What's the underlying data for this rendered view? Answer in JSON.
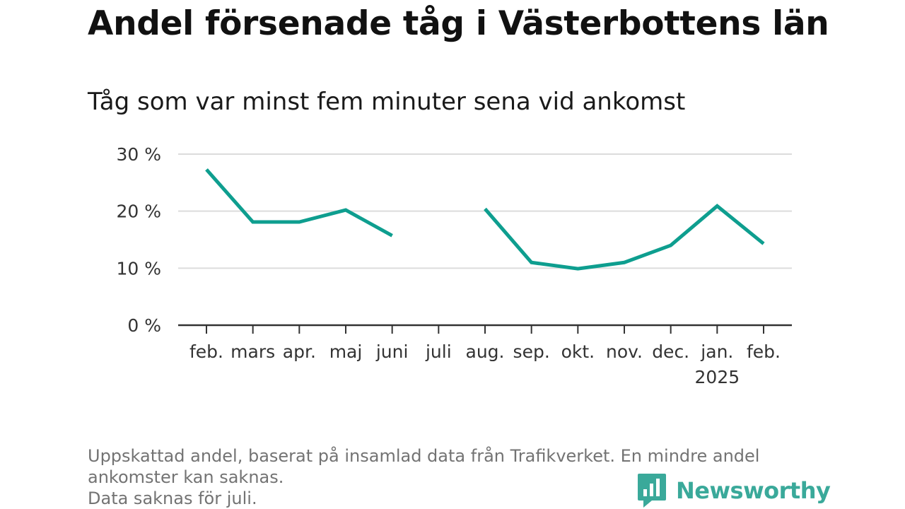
{
  "title": "Andel försenade tåg i Västerbottens län",
  "subtitle": "Tåg som var minst fem minuter sena vid ankomst",
  "chart_data": {
    "type": "line",
    "categories": [
      "feb.",
      "mars",
      "apr.",
      "maj",
      "juni",
      "juli",
      "aug.",
      "sep.",
      "okt.",
      "nov.",
      "dec.",
      "jan.",
      "feb."
    ],
    "category_sublabels": [
      "",
      "",
      "",
      "",
      "",
      "",
      "",
      "",
      "",
      "",
      "",
      "2025",
      ""
    ],
    "series": [
      {
        "values": [
          27.3,
          18.1,
          18.1,
          20.2,
          15.7,
          null,
          20.4,
          11.0,
          9.9,
          11.0,
          14.0,
          20.9,
          14.3
        ],
        "color": "#0e9e8f"
      }
    ],
    "ylim": [
      0,
      30
    ],
    "yticks": [
      0,
      10,
      20,
      30
    ],
    "ytick_labels": [
      "0 %",
      "10 %",
      "20 %",
      "30 %"
    ],
    "grid": true,
    "legend": "none",
    "gap_note": "Data saknas för juli."
  },
  "footnote": {
    "line1": "Uppskattad andel, baserat på insamlad data från Trafikverket. En mindre andel",
    "line2": "ankomster kan saknas.",
    "line3": "Data saknas för juli."
  },
  "brand": {
    "name": "Newsworthy",
    "color": "#3aa99a",
    "logo_icon": "bar-chart-speech-bubble-icon"
  }
}
